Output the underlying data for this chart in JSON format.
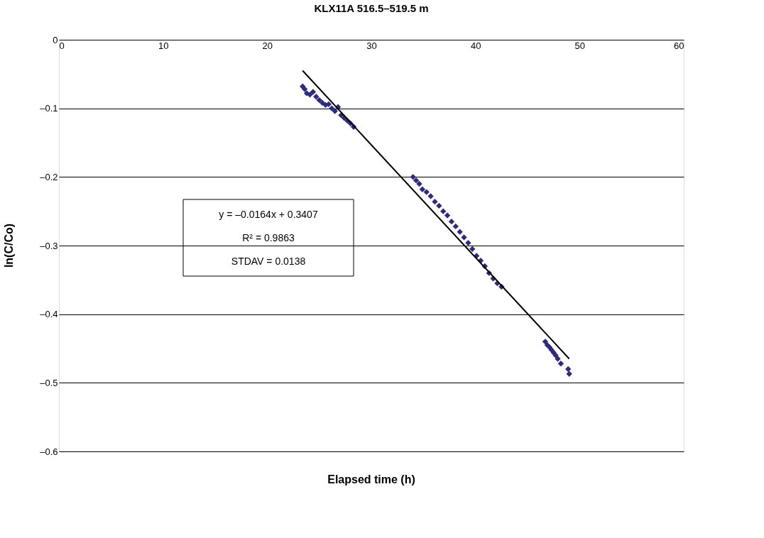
{
  "chart_data": {
    "type": "scatter",
    "title": "KLX11A 516.5–519.5 m",
    "xlabel": "Elapsed time (h)",
    "ylabel": "ln(C/Co)",
    "xlim": [
      0,
      60
    ],
    "xticks": [
      0,
      10,
      20,
      30,
      40,
      50,
      60
    ],
    "ylim": [
      -0.6,
      0
    ],
    "yticks": [
      {
        "value": -0.6,
        "label": "–0.6"
      },
      {
        "value": -0.5,
        "label": "–0.5"
      },
      {
        "value": -0.4,
        "label": "–0.4"
      },
      {
        "value": -0.3,
        "label": "–0.3"
      },
      {
        "value": -0.2,
        "label": "–0.2"
      },
      {
        "value": -0.1,
        "label": "–0.1"
      },
      {
        "value": 0,
        "label": "0"
      }
    ],
    "grid": "y",
    "legend": false,
    "annotations": [
      "y = –0.0164x + 0.3407",
      "R² = 0.9863",
      "STDAV = 0.0138"
    ],
    "series": [
      {
        "color": "#2e2a7e",
        "marker": "diamond",
        "x": [
          23.4,
          23.6,
          23.8,
          24.1,
          24.4,
          24.7,
          25.0,
          25.3,
          25.6,
          25.9,
          26.2,
          26.5,
          26.8,
          27.1,
          27.4,
          27.7,
          28.0,
          28.3,
          34.0,
          34.3,
          34.6,
          34.9,
          35.3,
          35.7,
          36.1,
          36.5,
          36.9,
          37.3,
          37.7,
          38.1,
          38.5,
          38.9,
          39.3,
          39.7,
          40.1,
          40.5,
          40.9,
          41.3,
          41.7,
          42.1,
          42.5,
          46.7,
          46.9,
          47.1,
          47.3,
          47.5,
          47.7,
          47.9,
          48.2,
          48.9,
          49.0
        ],
        "values": [
          -0.068,
          -0.072,
          -0.078,
          -0.08,
          -0.076,
          -0.083,
          -0.088,
          -0.092,
          -0.095,
          -0.094,
          -0.1,
          -0.104,
          -0.098,
          -0.11,
          -0.114,
          -0.118,
          -0.122,
          -0.127,
          -0.2,
          -0.205,
          -0.21,
          -0.218,
          -0.222,
          -0.228,
          -0.236,
          -0.242,
          -0.25,
          -0.256,
          -0.265,
          -0.272,
          -0.28,
          -0.288,
          -0.296,
          -0.305,
          -0.315,
          -0.322,
          -0.33,
          -0.34,
          -0.348,
          -0.355,
          -0.36,
          -0.44,
          -0.445,
          -0.448,
          -0.452,
          -0.456,
          -0.46,
          -0.465,
          -0.472,
          -0.48,
          -0.487
        ]
      },
      {
        "type": "line",
        "color": "#000000",
        "line_style": "solid",
        "x": [
          23.4,
          49.0
        ],
        "values": [
          -0.045,
          -0.465
        ]
      }
    ]
  }
}
